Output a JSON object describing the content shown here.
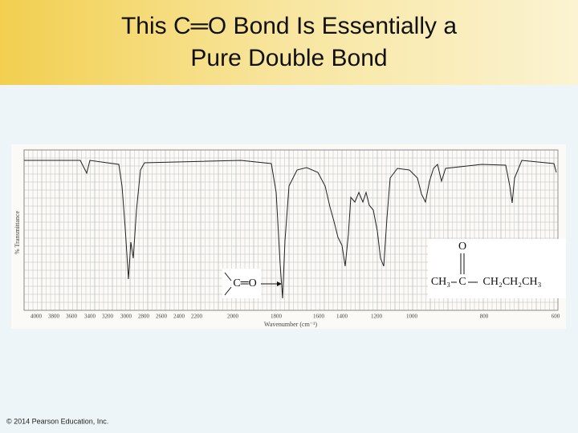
{
  "title": {
    "lines": [
      "This C═O Bond Is Essentially a",
      "Pure Double Bond"
    ]
  },
  "spectrum": {
    "x_axis_label": "Wavenumber (cm⁻¹)",
    "y_axis_label": "% Transmittance",
    "x_tick_labels": [
      "4000",
      "3800",
      "3600",
      "3400",
      "3200",
      "3000",
      "2800",
      "2600",
      "2400",
      "2200",
      "2000",
      "1800",
      "1600",
      "1400",
      "1200",
      "1000",
      "800",
      "600"
    ],
    "annotation": "C═O",
    "structure": {
      "oxygen": "O",
      "carbon": "C",
      "left_group": "CH₃",
      "right_group": "CH₂CH₂CH₃"
    }
  },
  "footer": "© 2014 Pearson Education, Inc."
}
